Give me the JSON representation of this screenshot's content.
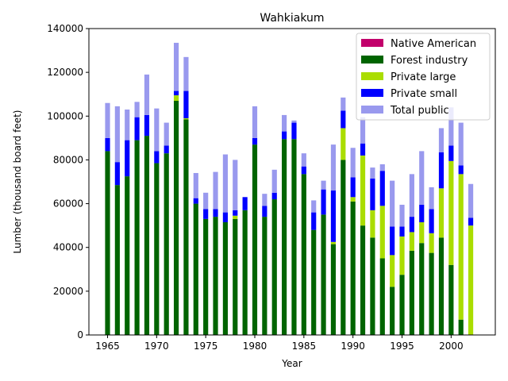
{
  "chart_data": {
    "type": "bar",
    "stacked": true,
    "title": "Wahkiakum",
    "xlabel": "Year",
    "ylabel": "Lumber (thousand board feet)",
    "ylim": [
      0,
      140000
    ],
    "xlim": [
      1963.1,
      2004.5
    ],
    "xticks": [
      1965,
      1970,
      1975,
      1980,
      1985,
      1990,
      1995,
      2000
    ],
    "yticks": [
      0,
      20000,
      40000,
      60000,
      80000,
      100000,
      120000,
      140000
    ],
    "legend_position": "top-right",
    "x": [
      1965,
      1966,
      1967,
      1968,
      1969,
      1970,
      1971,
      1972,
      1973,
      1974,
      1975,
      1976,
      1977,
      1978,
      1979,
      1980,
      1981,
      1982,
      1983,
      1984,
      1985,
      1986,
      1987,
      1988,
      1989,
      1990,
      1991,
      1992,
      1993,
      1994,
      1995,
      1996,
      1997,
      1998,
      1999,
      2000,
      2001,
      2002
    ],
    "series": [
      {
        "name": "Native American",
        "color": "#c2006b",
        "values": [
          0,
          0,
          0,
          0,
          0,
          0,
          0,
          0,
          0,
          0,
          0,
          0,
          0,
          0,
          0,
          0,
          0,
          0,
          0,
          0,
          0,
          0,
          0,
          0,
          0,
          0,
          0,
          0,
          0,
          0,
          0,
          0,
          0,
          0,
          0,
          0,
          0,
          0
        ]
      },
      {
        "name": "Forest industry",
        "color": "#006400",
        "values": [
          84000,
          68500,
          72500,
          89000,
          91000,
          78500,
          83000,
          107000,
          98500,
          60000,
          53000,
          54000,
          51500,
          53000,
          57000,
          87000,
          54000,
          62000,
          89500,
          89500,
          73500,
          48000,
          55000,
          41500,
          80000,
          61000,
          50000,
          44500,
          35000,
          22000,
          27500,
          38500,
          42000,
          37500,
          44500,
          32000,
          7000,
          0
        ]
      },
      {
        "name": "Private large",
        "color": "#aadd00",
        "values": [
          0,
          0,
          0,
          0,
          0,
          0,
          0,
          2500,
          500,
          0,
          0,
          0,
          0,
          1500,
          0,
          0,
          0,
          0,
          0,
          0,
          0,
          0,
          0,
          1000,
          14500,
          2000,
          32000,
          12500,
          24000,
          14500,
          17500,
          8500,
          9500,
          9000,
          22500,
          47500,
          66500,
          50000
        ]
      },
      {
        "name": "Private small",
        "color": "#0000ff",
        "values": [
          6000,
          10500,
          16500,
          10500,
          9500,
          5500,
          3500,
          2000,
          12500,
          2500,
          4500,
          3500,
          4500,
          2500,
          6000,
          3000,
          5000,
          3000,
          3500,
          7500,
          3500,
          8000,
          11500,
          23500,
          8000,
          9000,
          5500,
          14500,
          16000,
          13000,
          4500,
          7000,
          8000,
          11000,
          16500,
          7000,
          4000,
          3500
        ]
      },
      {
        "name": "Total public",
        "color": "#9999ee",
        "values": [
          16000,
          25500,
          14000,
          7000,
          18500,
          19500,
          10500,
          22000,
          15500,
          11500,
          7500,
          17000,
          26500,
          23000,
          0,
          14500,
          5500,
          10500,
          7500,
          1000,
          6000,
          5500,
          4000,
          21000,
          6000,
          13500,
          12000,
          5000,
          3000,
          21000,
          10000,
          19500,
          24500,
          10000,
          11000,
          17500,
          19500,
          15500
        ]
      }
    ]
  }
}
